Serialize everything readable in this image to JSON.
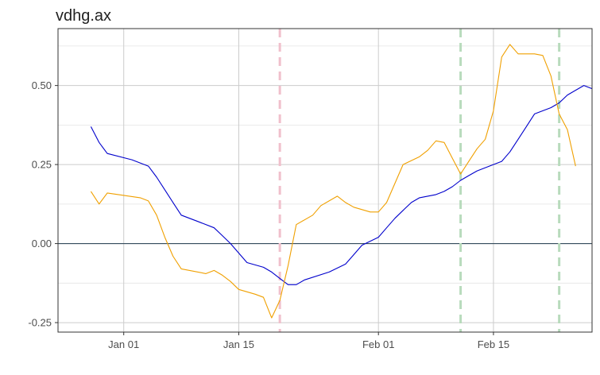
{
  "chart_data": {
    "type": "line",
    "title": "vdhg.ax",
    "xlabel": "",
    "ylabel": "",
    "x_ticks": [
      {
        "label": "Jan 01",
        "date": "2018-01-01"
      },
      {
        "label": "Jan 15",
        "date": "2018-01-15"
      },
      {
        "label": "Feb 01",
        "date": "2018-02-01"
      },
      {
        "label": "Feb 15",
        "date": "2018-02-15"
      }
    ],
    "y_ticks": [
      -0.25,
      0.0,
      0.25,
      0.5
    ],
    "y_tick_labels": [
      "-0.25",
      "0.00",
      "0.25",
      "0.50"
    ],
    "xlim": [
      "2017-12-24",
      "2018-02-27"
    ],
    "ylim": [
      -0.28,
      0.68
    ],
    "grid": true,
    "zero_line": true,
    "series": [
      {
        "color": "#0000cc",
        "points": [
          [
            "2017-12-28",
            0.37
          ],
          [
            "2017-12-29",
            0.32
          ],
          [
            "2017-12-30",
            0.285
          ],
          [
            "2018-01-02",
            0.265
          ],
          [
            "2018-01-04",
            0.245
          ],
          [
            "2018-01-05",
            0.21
          ],
          [
            "2018-01-06",
            0.17
          ],
          [
            "2018-01-07",
            0.13
          ],
          [
            "2018-01-08",
            0.09
          ],
          [
            "2018-01-10",
            0.07
          ],
          [
            "2018-01-12",
            0.05
          ],
          [
            "2018-01-13",
            0.025
          ],
          [
            "2018-01-14",
            0.0
          ],
          [
            "2018-01-15",
            -0.03
          ],
          [
            "2018-01-16",
            -0.06
          ],
          [
            "2018-01-18",
            -0.075
          ],
          [
            "2018-01-19",
            -0.09
          ],
          [
            "2018-01-20",
            -0.11
          ],
          [
            "2018-01-21",
            -0.13
          ],
          [
            "2018-01-22",
            -0.13
          ],
          [
            "2018-01-23",
            -0.115
          ],
          [
            "2018-01-26",
            -0.09
          ],
          [
            "2018-01-28",
            -0.065
          ],
          [
            "2018-01-29",
            -0.035
          ],
          [
            "2018-01-30",
            -0.005
          ],
          [
            "2018-02-01",
            0.02
          ],
          [
            "2018-02-02",
            0.05
          ],
          [
            "2018-02-03",
            0.08
          ],
          [
            "2018-02-04",
            0.105
          ],
          [
            "2018-02-05",
            0.13
          ],
          [
            "2018-02-06",
            0.145
          ],
          [
            "2018-02-08",
            0.155
          ],
          [
            "2018-02-09",
            0.165
          ],
          [
            "2018-02-10",
            0.18
          ],
          [
            "2018-02-11",
            0.2
          ],
          [
            "2018-02-12",
            0.215
          ],
          [
            "2018-02-13",
            0.23
          ],
          [
            "2018-02-14",
            0.24
          ],
          [
            "2018-02-15",
            0.25
          ],
          [
            "2018-02-16",
            0.26
          ],
          [
            "2018-02-17",
            0.29
          ],
          [
            "2018-02-18",
            0.33
          ],
          [
            "2018-02-19",
            0.37
          ],
          [
            "2018-02-20",
            0.41
          ],
          [
            "2018-02-22",
            0.43
          ],
          [
            "2018-02-23",
            0.445
          ],
          [
            "2018-02-24",
            0.47
          ],
          [
            "2018-02-25",
            0.485
          ],
          [
            "2018-02-26",
            0.5
          ],
          [
            "2018-02-27",
            0.49
          ]
        ]
      },
      {
        "color": "#f0a000",
        "points": [
          [
            "2017-12-28",
            0.165
          ],
          [
            "2017-12-29",
            0.125
          ],
          [
            "2017-12-30",
            0.16
          ],
          [
            "2018-01-03",
            0.145
          ],
          [
            "2018-01-04",
            0.135
          ],
          [
            "2018-01-05",
            0.09
          ],
          [
            "2018-01-06",
            0.02
          ],
          [
            "2018-01-07",
            -0.04
          ],
          [
            "2018-01-08",
            -0.08
          ],
          [
            "2018-01-11",
            -0.095
          ],
          [
            "2018-01-12",
            -0.085
          ],
          [
            "2018-01-13",
            -0.1
          ],
          [
            "2018-01-14",
            -0.12
          ],
          [
            "2018-01-15",
            -0.145
          ],
          [
            "2018-01-17",
            -0.16
          ],
          [
            "2018-01-18",
            -0.17
          ],
          [
            "2018-01-19",
            -0.235
          ],
          [
            "2018-01-20",
            -0.18
          ],
          [
            "2018-01-21",
            -0.07
          ],
          [
            "2018-01-22",
            0.06
          ],
          [
            "2018-01-24",
            0.09
          ],
          [
            "2018-01-25",
            0.12
          ],
          [
            "2018-01-27",
            0.15
          ],
          [
            "2018-01-28",
            0.13
          ],
          [
            "2018-01-29",
            0.115
          ],
          [
            "2018-01-31",
            0.1
          ],
          [
            "2018-02-01",
            0.1
          ],
          [
            "2018-02-02",
            0.13
          ],
          [
            "2018-02-04",
            0.25
          ],
          [
            "2018-02-06",
            0.275
          ],
          [
            "2018-02-07",
            0.295
          ],
          [
            "2018-02-08",
            0.325
          ],
          [
            "2018-02-09",
            0.32
          ],
          [
            "2018-02-10",
            0.27
          ],
          [
            "2018-02-11",
            0.22
          ],
          [
            "2018-02-12",
            0.26
          ],
          [
            "2018-02-13",
            0.3
          ],
          [
            "2018-02-14",
            0.33
          ],
          [
            "2018-02-15",
            0.42
          ],
          [
            "2018-02-16",
            0.59
          ],
          [
            "2018-02-17",
            0.63
          ],
          [
            "2018-02-18",
            0.6
          ],
          [
            "2018-02-20",
            0.6
          ],
          [
            "2018-02-21",
            0.595
          ],
          [
            "2018-02-22",
            0.53
          ],
          [
            "2018-02-23",
            0.41
          ],
          [
            "2018-02-24",
            0.36
          ],
          [
            "2018-02-25",
            0.245
          ]
        ]
      }
    ],
    "vlines": [
      {
        "date": "2018-01-20",
        "color": "#f0c0cc"
      },
      {
        "date": "2018-02-11",
        "color": "#b8dbbc"
      },
      {
        "date": "2018-02-23",
        "color": "#b8dbbc"
      }
    ]
  }
}
